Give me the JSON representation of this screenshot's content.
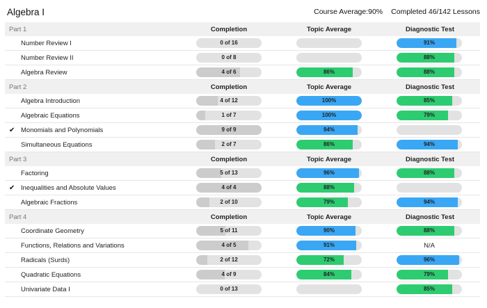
{
  "title": "Algebra I",
  "course_average": "Course Average:90%",
  "completed": "Completed 46/142 Lessons",
  "columns": {
    "completion": "Completion",
    "topic_average": "Topic Average",
    "diagnostic_test": "Diagnostic Test"
  },
  "colors": {
    "grey": "#cccccc",
    "green": "#2ecc71",
    "blue": "#3aa7f5",
    "track": "#e2e2e2"
  },
  "parts": [
    {
      "label": "Part 1",
      "lessons": [
        {
          "name": "Number Review I",
          "checked": false,
          "completion": "0 of 16",
          "completion_pct": 0,
          "topic": null,
          "diagnostic": "91%",
          "diagnostic_pct": 91,
          "diagnostic_color": "blue"
        },
        {
          "name": "Number Review II",
          "checked": false,
          "completion": "0 of 8",
          "completion_pct": 0,
          "topic": null,
          "diagnostic": "88%",
          "diagnostic_pct": 88,
          "diagnostic_color": "green"
        },
        {
          "name": "Algebra Review",
          "checked": false,
          "completion": "4 of 6",
          "completion_pct": 67,
          "topic": "86%",
          "topic_pct": 86,
          "topic_color": "green",
          "diagnostic": "88%",
          "diagnostic_pct": 88,
          "diagnostic_color": "green"
        }
      ]
    },
    {
      "label": "Part 2",
      "lessons": [
        {
          "name": "Algebra Introduction",
          "checked": false,
          "completion": "4 of 12",
          "completion_pct": 33,
          "topic": "100%",
          "topic_pct": 100,
          "topic_color": "blue",
          "diagnostic": "85%",
          "diagnostic_pct": 85,
          "diagnostic_color": "green"
        },
        {
          "name": "Algebraic Equations",
          "checked": false,
          "completion": "1 of 7",
          "completion_pct": 14,
          "topic": "100%",
          "topic_pct": 100,
          "topic_color": "blue",
          "diagnostic": "79%",
          "diagnostic_pct": 79,
          "diagnostic_color": "green"
        },
        {
          "name": "Monomials and Polynomials",
          "checked": true,
          "completion": "9 of 9",
          "completion_pct": 100,
          "topic": "94%",
          "topic_pct": 94,
          "topic_color": "blue",
          "diagnostic": null
        },
        {
          "name": "Simultaneous Equations",
          "checked": false,
          "completion": "2 of 7",
          "completion_pct": 29,
          "topic": "86%",
          "topic_pct": 86,
          "topic_color": "green",
          "diagnostic": "94%",
          "diagnostic_pct": 94,
          "diagnostic_color": "blue"
        }
      ]
    },
    {
      "label": "Part 3",
      "lessons": [
        {
          "name": "Factoring",
          "checked": false,
          "completion": "5 of 13",
          "completion_pct": 38,
          "topic": "96%",
          "topic_pct": 96,
          "topic_color": "blue",
          "diagnostic": "88%",
          "diagnostic_pct": 88,
          "diagnostic_color": "green"
        },
        {
          "name": "Inequalities and Absolute Values",
          "checked": true,
          "completion": "4 of 4",
          "completion_pct": 100,
          "topic": "88%",
          "topic_pct": 88,
          "topic_color": "green",
          "diagnostic": null
        },
        {
          "name": "Algebraic Fractions",
          "checked": false,
          "completion": "2 of 10",
          "completion_pct": 20,
          "topic": "79%",
          "topic_pct": 79,
          "topic_color": "green",
          "diagnostic": "94%",
          "diagnostic_pct": 94,
          "diagnostic_color": "blue"
        }
      ]
    },
    {
      "label": "Part 4",
      "lessons": [
        {
          "name": "Coordinate Geometry",
          "checked": false,
          "completion": "5 of 11",
          "completion_pct": 45,
          "topic": "90%",
          "topic_pct": 90,
          "topic_color": "blue",
          "diagnostic": "88%",
          "diagnostic_pct": 88,
          "diagnostic_color": "green"
        },
        {
          "name": "Functions, Relations and Variations",
          "checked": false,
          "completion": "4 of 5",
          "completion_pct": 80,
          "topic": "91%",
          "topic_pct": 91,
          "topic_color": "blue",
          "diagnostic": null,
          "diagnostic_text": "N/A"
        },
        {
          "name": "Radicals (Surds)",
          "checked": false,
          "completion": "2 of 12",
          "completion_pct": 17,
          "topic": "72%",
          "topic_pct": 72,
          "topic_color": "green",
          "diagnostic": "96%",
          "diagnostic_pct": 96,
          "diagnostic_color": "blue"
        },
        {
          "name": "Quadratic Equations",
          "checked": false,
          "completion": "4 of 9",
          "completion_pct": 44,
          "topic": "84%",
          "topic_pct": 84,
          "topic_color": "green",
          "diagnostic": "79%",
          "diagnostic_pct": 79,
          "diagnostic_color": "green"
        },
        {
          "name": "Univariate Data I",
          "checked": false,
          "completion": "0 of 13",
          "completion_pct": 0,
          "topic": null,
          "diagnostic": "85%",
          "diagnostic_pct": 85,
          "diagnostic_color": "green"
        }
      ]
    }
  ]
}
